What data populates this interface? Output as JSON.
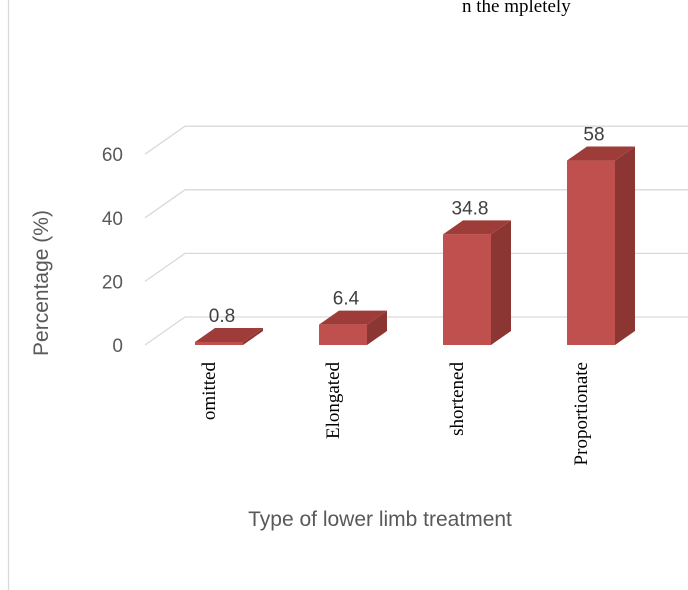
{
  "chart_data": {
    "type": "bar",
    "style": "3d-column",
    "title": "",
    "xlabel": "Type of lower limb treatment",
    "ylabel": "Percentage (%)",
    "categories": [
      "omitted",
      "Elongated",
      "shortened",
      "Proportionate"
    ],
    "values": [
      0.8,
      6.4,
      34.8,
      58
    ],
    "data_labels": [
      "0.8",
      "6.4",
      "34.8",
      "58"
    ],
    "y_ticks": [
      "0",
      "20",
      "40",
      "60"
    ],
    "ylim": [
      0,
      60
    ],
    "grid": true,
    "legend": "none",
    "bar_color": "#c0504d",
    "bar_side_color": "#8c3634",
    "bar_top_color": "#9e3c3a"
  },
  "header_fragment": "n the mpletely"
}
